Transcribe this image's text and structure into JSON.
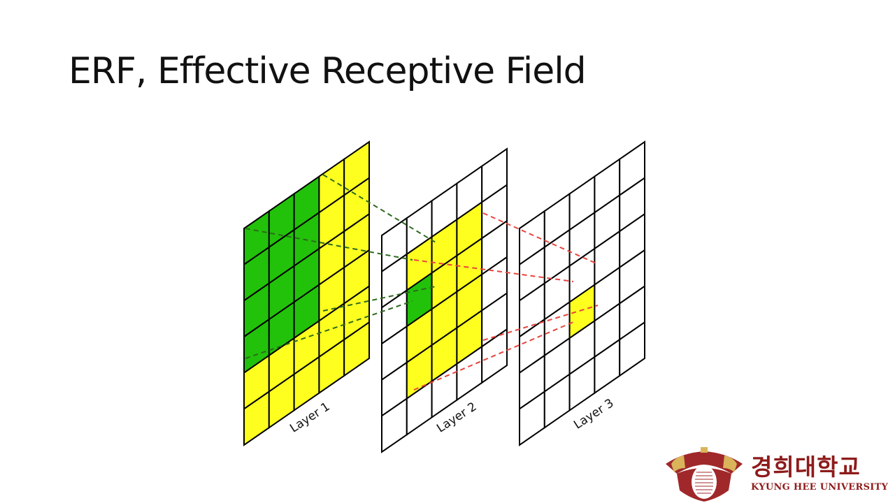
{
  "slide": {
    "title": "ERF, Effective Receptive Field"
  },
  "diagram": {
    "colors": {
      "green": "#22c20a",
      "yellow": "#ffff1f",
      "white": "#ffffff",
      "line": "#000000",
      "green_dash": "#2e6a1e",
      "red_dash": "#e8443e"
    },
    "layers": [
      {
        "label": "Layer 1",
        "rows": 6,
        "cols": 5
      },
      {
        "label": "Layer 2",
        "rows": 6,
        "cols": 5
      },
      {
        "label": "Layer 3",
        "rows": 6,
        "cols": 5
      }
    ]
  },
  "logo": {
    "korean": "경희대학교",
    "english": "KYUNG HEE UNIVERSITY",
    "colors": {
      "crimson": "#a0282a",
      "gold": "#d9b45a"
    }
  }
}
